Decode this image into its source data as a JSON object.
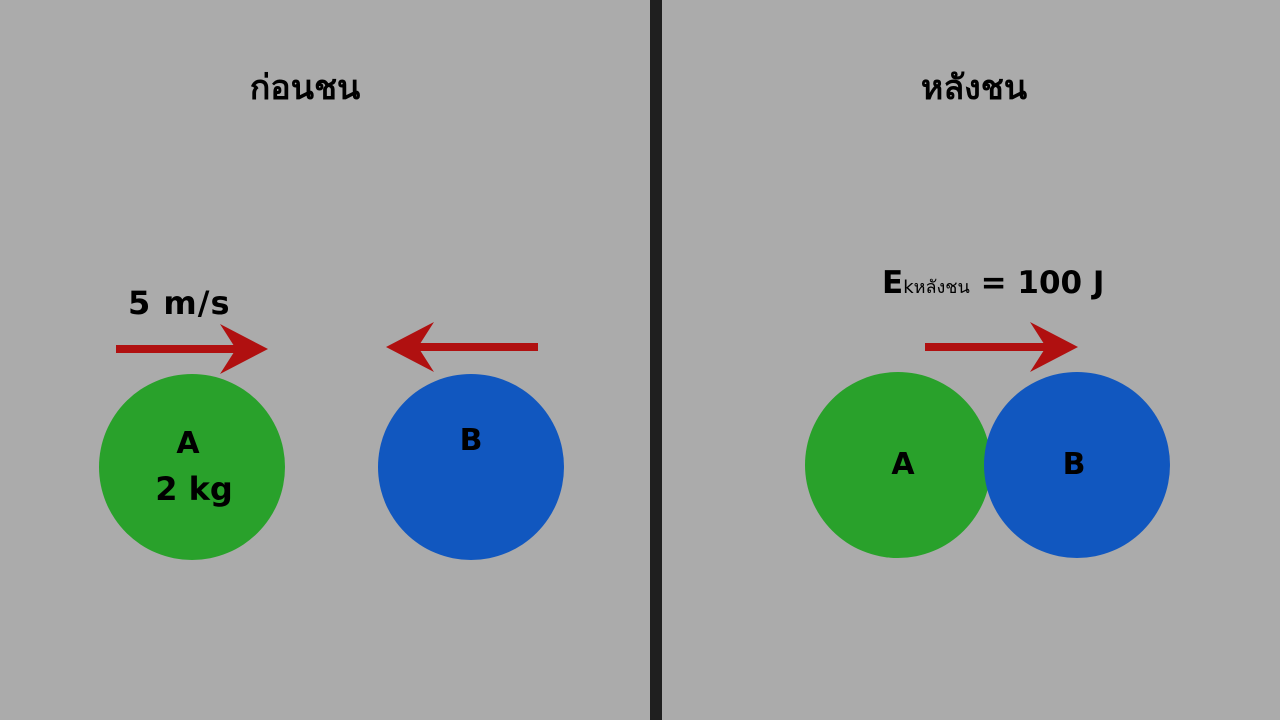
{
  "before": {
    "title": "ก่อนชน",
    "velocity_label": "5 m/s",
    "ball_a": {
      "label": "A",
      "mass": "2 kg"
    },
    "ball_b": {
      "label": "B"
    }
  },
  "after": {
    "title": "หลังชน",
    "energy_symbol": "E",
    "energy_subscript": "kหลังชน",
    "energy_value": " = 100 J",
    "ball_a": {
      "label": "A"
    },
    "ball_b": {
      "label": "B"
    }
  },
  "colors": {
    "background": "#ababab",
    "divider": "#1f1f1f",
    "ball_a": "#29a12b",
    "ball_b": "#1157bf",
    "arrow": "#b01010"
  }
}
